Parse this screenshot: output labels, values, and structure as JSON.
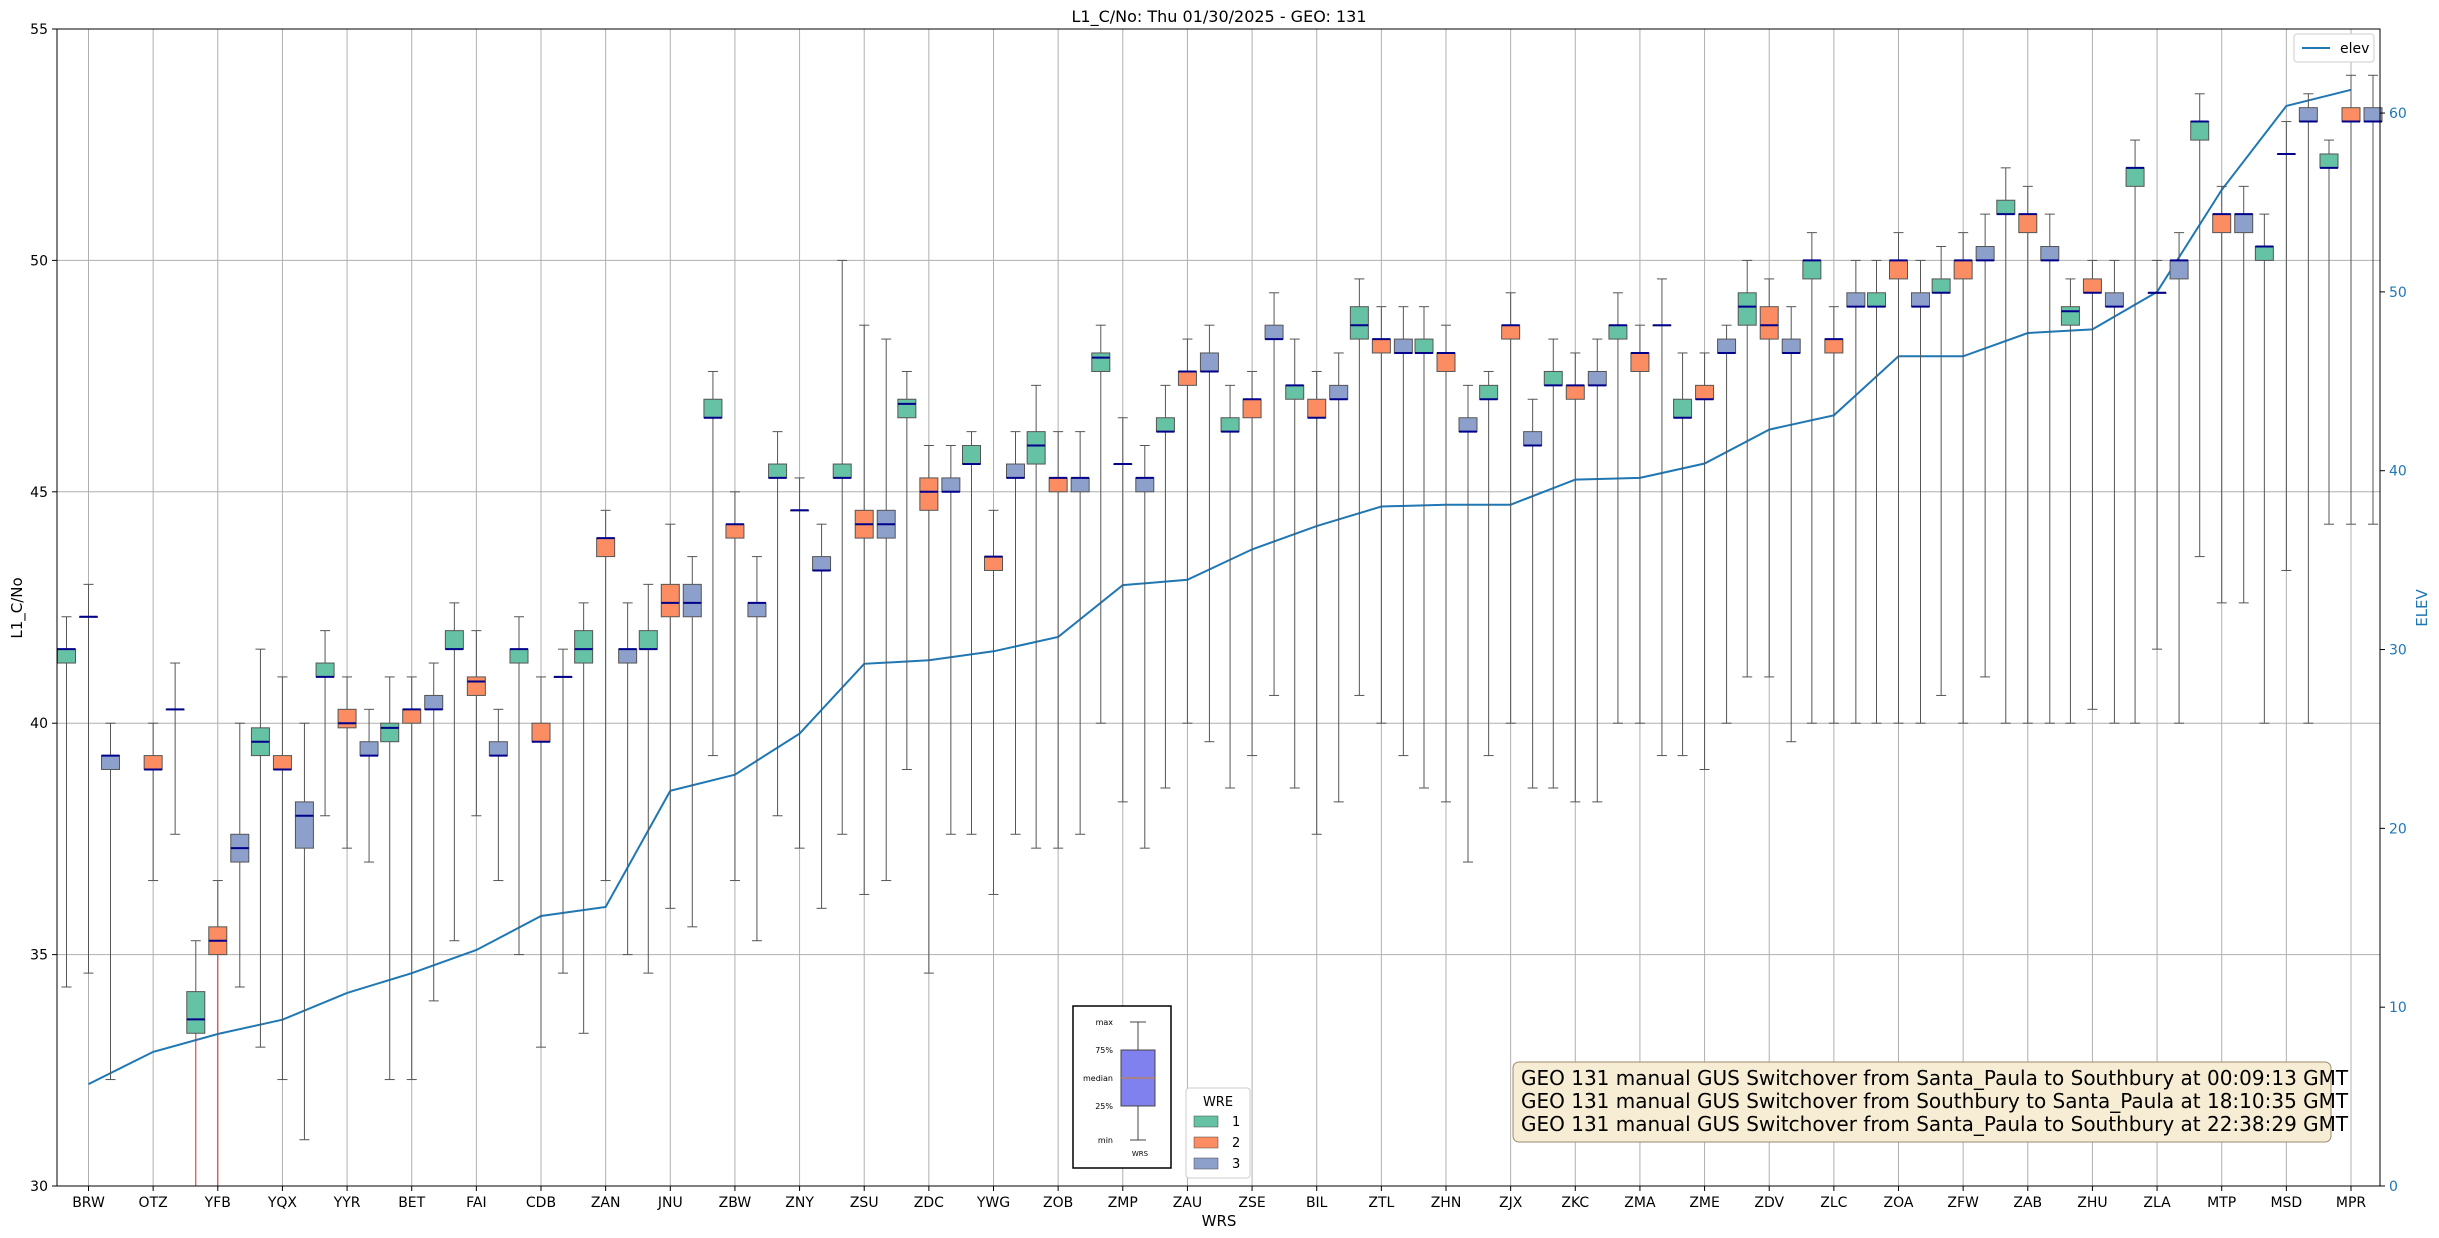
{
  "chart_data": {
    "type": "box",
    "title": "L1_C/No: Thu 01/30/2025 - GEO: 131",
    "xlabel": "WRS",
    "ylabel": "L1_C/No",
    "y2label": "ELEV",
    "ylim": [
      30,
      55
    ],
    "y2lim": [
      0,
      64.7
    ],
    "yticks": [
      30,
      35,
      40,
      45,
      50,
      55
    ],
    "y2ticks": [
      0,
      10,
      20,
      30,
      40,
      50,
      60
    ],
    "grid": true,
    "categories": [
      "BRW",
      "OTZ",
      "YFB",
      "YQX",
      "YYR",
      "BET",
      "FAI",
      "CDB",
      "ZAN",
      "JNU",
      "ZBW",
      "ZNY",
      "ZSU",
      "ZDC",
      "YWG",
      "ZOB",
      "ZMP",
      "ZAU",
      "ZSE",
      "BIL",
      "ZTL",
      "ZHN",
      "ZJX",
      "ZKC",
      "ZMA",
      "ZME",
      "ZDV",
      "ZLC",
      "ZOA",
      "ZFW",
      "ZAB",
      "ZHU",
      "ZLA",
      "MTP",
      "MSD",
      "MPR"
    ],
    "series": [
      {
        "name": "1",
        "color": "#66c2a5",
        "boxes": [
          {
            "q1": 41.3,
            "med": 41.6,
            "q3": 41.6,
            "min": 34.3,
            "max": 42.3
          },
          null,
          {
            "q1": 33.3,
            "med": 33.6,
            "q3": 34.2,
            "min": 30,
            "max": 35.3
          },
          {
            "q1": 39.3,
            "med": 39.6,
            "q3": 39.9,
            "min": 33.0,
            "max": 41.6
          },
          {
            "q1": 41.0,
            "med": 41.0,
            "q3": 41.3,
            "min": 38.0,
            "max": 42.0
          },
          {
            "q1": 39.6,
            "med": 39.9,
            "q3": 40.0,
            "min": 32.3,
            "max": 41.0
          },
          {
            "q1": 41.6,
            "med": 41.6,
            "q3": 42.0,
            "min": 35.3,
            "max": 42.6
          },
          {
            "q1": 41.3,
            "med": 41.6,
            "q3": 41.6,
            "min": 35.0,
            "max": 42.3
          },
          {
            "q1": 41.3,
            "med": 41.6,
            "q3": 42.0,
            "min": 33.3,
            "max": 42.6
          },
          {
            "q1": 41.6,
            "med": 41.6,
            "q3": 42.0,
            "min": 34.6,
            "max": 43.0
          },
          {
            "q1": 46.6,
            "med": 46.6,
            "q3": 47.0,
            "min": 39.3,
            "max": 47.6
          },
          {
            "q1": 45.3,
            "med": 45.3,
            "q3": 45.6,
            "min": 38.0,
            "max": 46.3
          },
          {
            "q1": 45.3,
            "med": 45.3,
            "q3": 45.6,
            "min": 37.6,
            "max": 50.0
          },
          {
            "q1": 46.6,
            "med": 46.9,
            "q3": 47.0,
            "min": 39.0,
            "max": 47.6
          },
          {
            "q1": 45.6,
            "med": 45.6,
            "q3": 46.0,
            "min": 37.6,
            "max": 46.3
          },
          {
            "q1": 45.6,
            "med": 46.0,
            "q3": 46.3,
            "min": 37.3,
            "max": 47.3
          },
          {
            "q1": 47.6,
            "med": 47.9,
            "q3": 48.0,
            "min": 40.0,
            "max": 48.6
          },
          {
            "q1": 46.3,
            "med": 46.3,
            "q3": 46.6,
            "min": 38.6,
            "max": 47.3
          },
          {
            "q1": 46.3,
            "med": 46.3,
            "q3": 46.6,
            "min": 38.6,
            "max": 47.3
          },
          {
            "q1": 47.0,
            "med": 47.3,
            "q3": 47.3,
            "min": 38.6,
            "max": 48.3
          },
          {
            "q1": 48.3,
            "med": 48.6,
            "q3": 49.0,
            "min": 40.6,
            "max": 49.6
          },
          {
            "q1": 48.0,
            "med": 48.0,
            "q3": 48.3,
            "min": 38.6,
            "max": 49.0
          },
          {
            "q1": 47.0,
            "med": 47.0,
            "q3": 47.3,
            "min": 39.3,
            "max": 47.6
          },
          {
            "q1": 47.3,
            "med": 47.3,
            "q3": 47.6,
            "min": 38.6,
            "max": 48.3
          },
          {
            "q1": 48.3,
            "med": 48.6,
            "q3": 48.6,
            "min": 40.0,
            "max": 49.3
          },
          {
            "q1": 46.6,
            "med": 46.6,
            "q3": 47.0,
            "min": 39.3,
            "max": 48.0
          },
          {
            "q1": 48.6,
            "med": 49.0,
            "q3": 49.3,
            "min": 41.0,
            "max": 50.0
          },
          {
            "q1": 49.6,
            "med": 50.0,
            "q3": 50.0,
            "min": 40.0,
            "max": 50.6
          },
          {
            "q1": 49.0,
            "med": 49.0,
            "q3": 49.3,
            "min": 40.0,
            "max": 50.0
          },
          {
            "q1": 49.3,
            "med": 49.3,
            "q3": 49.6,
            "min": 40.6,
            "max": 50.3
          },
          {
            "q1": 51.0,
            "med": 51.0,
            "q3": 51.3,
            "min": 40.0,
            "max": 52.0
          },
          {
            "q1": 48.6,
            "med": 48.9,
            "q3": 49.0,
            "min": 40.0,
            "max": 49.6
          },
          {
            "q1": 51.6,
            "med": 52.0,
            "q3": 52.0,
            "min": 40.0,
            "max": 52.6
          },
          {
            "q1": 52.6,
            "med": 53.0,
            "q3": 53.0,
            "min": 43.6,
            "max": 53.6
          },
          {
            "q1": 50.0,
            "med": 50.3,
            "q3": 50.3,
            "min": 40.0,
            "max": 51.0
          },
          {
            "q1": 52.0,
            "med": 52.0,
            "q3": 52.3,
            "min": 44.3,
            "max": 52.6
          }
        ]
      },
      {
        "name": "2",
        "color": "#fc8d62",
        "boxes": [
          {
            "q1": 42.3,
            "med": 42.3,
            "q3": 42.3,
            "min": 34.6,
            "max": 43.0
          },
          {
            "q1": 39.0,
            "med": 39.0,
            "q3": 39.3,
            "min": 36.6,
            "max": 40.0
          },
          {
            "q1": 35.0,
            "med": 35.3,
            "q3": 35.6,
            "min": 30,
            "max": 36.6
          },
          {
            "q1": 39.0,
            "med": 39.0,
            "q3": 39.3,
            "min": 32.3,
            "max": 41.0
          },
          {
            "q1": 39.9,
            "med": 40.0,
            "q3": 40.3,
            "min": 37.3,
            "max": 41.0
          },
          {
            "q1": 40.0,
            "med": 40.3,
            "q3": 40.3,
            "min": 32.3,
            "max": 41.0
          },
          {
            "q1": 40.6,
            "med": 40.9,
            "q3": 41.0,
            "min": 38.0,
            "max": 42.0
          },
          {
            "q1": 39.6,
            "med": 39.6,
            "q3": 40.0,
            "min": 33.0,
            "max": 41.0
          },
          {
            "q1": 43.6,
            "med": 44.0,
            "q3": 44.0,
            "min": 36.6,
            "max": 44.6
          },
          {
            "q1": 42.3,
            "med": 42.6,
            "q3": 43.0,
            "min": 36.0,
            "max": 44.3
          },
          {
            "q1": 44.0,
            "med": 44.3,
            "q3": 44.3,
            "min": 36.6,
            "max": 45.0
          },
          {
            "q1": 44.6,
            "med": 44.6,
            "q3": 44.6,
            "min": 37.3,
            "max": 45.3
          },
          {
            "q1": 44.0,
            "med": 44.3,
            "q3": 44.6,
            "min": 36.3,
            "max": 48.6
          },
          {
            "q1": 44.6,
            "med": 45.0,
            "q3": 45.3,
            "min": 34.6,
            "max": 46.0
          },
          {
            "q1": 43.3,
            "med": 43.6,
            "q3": 43.6,
            "min": 36.3,
            "max": 44.6
          },
          {
            "q1": 45.0,
            "med": 45.3,
            "q3": 45.3,
            "min": 37.3,
            "max": 46.3
          },
          {
            "q1": 45.6,
            "med": 45.6,
            "q3": 45.6,
            "min": 38.3,
            "max": 46.6
          },
          {
            "q1": 47.3,
            "med": 47.6,
            "q3": 47.6,
            "min": 40.0,
            "max": 48.3
          },
          {
            "q1": 46.6,
            "med": 47.0,
            "q3": 47.0,
            "min": 39.3,
            "max": 47.6
          },
          {
            "q1": 46.6,
            "med": 46.6,
            "q3": 47.0,
            "min": 37.6,
            "max": 47.6
          },
          {
            "q1": 48.0,
            "med": 48.3,
            "q3": 48.3,
            "min": 40.0,
            "max": 49.0
          },
          {
            "q1": 47.6,
            "med": 48.0,
            "q3": 48.0,
            "min": 38.3,
            "max": 48.6
          },
          {
            "q1": 48.3,
            "med": 48.6,
            "q3": 48.6,
            "min": 40.0,
            "max": 49.3
          },
          {
            "q1": 47.0,
            "med": 47.3,
            "q3": 47.3,
            "min": 38.3,
            "max": 48.0
          },
          {
            "q1": 47.6,
            "med": 48.0,
            "q3": 48.0,
            "min": 40.0,
            "max": 48.6
          },
          {
            "q1": 47.0,
            "med": 47.0,
            "q3": 47.3,
            "min": 39.0,
            "max": 48.0
          },
          {
            "q1": 48.3,
            "med": 48.6,
            "q3": 49.0,
            "min": 41.0,
            "max": 49.6
          },
          {
            "q1": 48.0,
            "med": 48.3,
            "q3": 48.3,
            "min": 40.0,
            "max": 49.0
          },
          {
            "q1": 49.6,
            "med": 50.0,
            "q3": 50.0,
            "min": 40.0,
            "max": 50.6
          },
          {
            "q1": 49.6,
            "med": 50.0,
            "q3": 50.0,
            "min": 40.0,
            "max": 50.6
          },
          {
            "q1": 50.6,
            "med": 51.0,
            "q3": 51.0,
            "min": 40.0,
            "max": 51.6
          },
          {
            "q1": 49.3,
            "med": 49.3,
            "q3": 49.6,
            "min": 40.3,
            "max": 50.0
          },
          {
            "q1": 49.3,
            "med": 49.3,
            "q3": 49.3,
            "min": 41.6,
            "max": 50.0
          },
          {
            "q1": 50.6,
            "med": 51.0,
            "q3": 51.0,
            "min": 42.6,
            "max": 51.6
          },
          {
            "q1": 52.3,
            "med": 52.3,
            "q3": 52.3,
            "min": 43.3,
            "max": 53.0
          },
          {
            "q1": 53.0,
            "med": 53.0,
            "q3": 53.3,
            "min": 44.3,
            "max": 54.0
          }
        ]
      },
      {
        "name": "3",
        "color": "#8da0cb",
        "boxes": [
          {
            "q1": 39.0,
            "med": 39.3,
            "q3": 39.3,
            "min": 32.3,
            "max": 40.0
          },
          {
            "q1": 40.3,
            "med": 40.3,
            "q3": 40.3,
            "min": 37.6,
            "max": 41.3
          },
          {
            "q1": 37.0,
            "med": 37.3,
            "q3": 37.6,
            "min": 34.3,
            "max": 40.0
          },
          {
            "q1": 37.3,
            "med": 38.0,
            "q3": 38.3,
            "min": 31.0,
            "max": 40.0
          },
          {
            "q1": 39.3,
            "med": 39.3,
            "q3": 39.6,
            "min": 37.0,
            "max": 40.3
          },
          {
            "q1": 40.3,
            "med": 40.3,
            "q3": 40.6,
            "min": 34.0,
            "max": 41.3
          },
          {
            "q1": 39.3,
            "med": 39.3,
            "q3": 39.6,
            "min": 36.6,
            "max": 40.3
          },
          {
            "q1": 41.0,
            "med": 41.0,
            "q3": 41.0,
            "min": 34.6,
            "max": 41.6
          },
          {
            "q1": 41.3,
            "med": 41.6,
            "q3": 41.6,
            "min": 35.0,
            "max": 42.6
          },
          {
            "q1": 42.3,
            "med": 42.6,
            "q3": 43.0,
            "min": 35.6,
            "max": 43.6
          },
          {
            "q1": 42.3,
            "med": 42.6,
            "q3": 42.6,
            "min": 35.3,
            "max": 43.6
          },
          {
            "q1": 43.3,
            "med": 43.3,
            "q3": 43.6,
            "min": 36.0,
            "max": 44.3
          },
          {
            "q1": 44.0,
            "med": 44.3,
            "q3": 44.6,
            "min": 36.6,
            "max": 48.3
          },
          {
            "q1": 45.0,
            "med": 45.0,
            "q3": 45.3,
            "min": 37.6,
            "max": 46.0
          },
          {
            "q1": 45.3,
            "med": 45.3,
            "q3": 45.6,
            "min": 37.6,
            "max": 46.3
          },
          {
            "q1": 45.0,
            "med": 45.3,
            "q3": 45.3,
            "min": 37.6,
            "max": 46.3
          },
          {
            "q1": 45.0,
            "med": 45.3,
            "q3": 45.3,
            "min": 37.3,
            "max": 46.0
          },
          {
            "q1": 47.6,
            "med": 47.6,
            "q3": 48.0,
            "min": 39.6,
            "max": 48.6
          },
          {
            "q1": 48.3,
            "med": 48.3,
            "q3": 48.6,
            "min": 40.6,
            "max": 49.3
          },
          {
            "q1": 47.0,
            "med": 47.0,
            "q3": 47.3,
            "min": 38.3,
            "max": 48.0
          },
          {
            "q1": 48.0,
            "med": 48.0,
            "q3": 48.3,
            "min": 39.3,
            "max": 49.0
          },
          {
            "q1": 46.3,
            "med": 46.3,
            "q3": 46.6,
            "min": 37.0,
            "max": 47.3
          },
          {
            "q1": 46.0,
            "med": 46.0,
            "q3": 46.3,
            "min": 38.6,
            "max": 47.0
          },
          {
            "q1": 47.3,
            "med": 47.3,
            "q3": 47.6,
            "min": 38.3,
            "max": 48.3
          },
          {
            "q1": 48.6,
            "med": 48.6,
            "q3": 48.6,
            "min": 39.3,
            "max": 49.6
          },
          {
            "q1": 48.0,
            "med": 48.0,
            "q3": 48.3,
            "min": 40.0,
            "max": 48.6
          },
          {
            "q1": 48.0,
            "med": 48.0,
            "q3": 48.3,
            "min": 39.6,
            "max": 49.0
          },
          {
            "q1": 49.0,
            "med": 49.0,
            "q3": 49.3,
            "min": 40.0,
            "max": 50.0
          },
          {
            "q1": 49.0,
            "med": 49.0,
            "q3": 49.3,
            "min": 40.0,
            "max": 50.0
          },
          {
            "q1": 50.0,
            "med": 50.0,
            "q3": 50.3,
            "min": 41.0,
            "max": 51.0
          },
          {
            "q1": 50.0,
            "med": 50.0,
            "q3": 50.3,
            "min": 40.0,
            "max": 51.0
          },
          {
            "q1": 49.0,
            "med": 49.0,
            "q3": 49.3,
            "min": 40.0,
            "max": 50.0
          },
          {
            "q1": 49.6,
            "med": 50.0,
            "q3": 50.0,
            "min": 40.0,
            "max": 50.6
          },
          {
            "q1": 50.6,
            "med": 51.0,
            "q3": 51.0,
            "min": 42.6,
            "max": 51.6
          },
          {
            "q1": 53.0,
            "med": 53.0,
            "q3": 53.3,
            "min": 40.0,
            "max": 53.6
          },
          {
            "q1": 53.0,
            "med": 53.0,
            "q3": 53.3,
            "min": 44.3,
            "max": 54.0
          }
        ]
      }
    ],
    "elev": {
      "name": "elev",
      "color": "#1f77b4",
      "values": [
        5.7,
        7.5,
        8.5,
        9.3,
        10.8,
        11.9,
        13.2,
        15.1,
        15.6,
        22.1,
        23.0,
        25.3,
        29.2,
        29.4,
        29.9,
        30.7,
        33.6,
        33.9,
        35.6,
        36.9,
        38.0,
        38.1,
        38.1,
        39.5,
        39.6,
        40.4,
        42.3,
        43.1,
        46.4,
        46.4,
        47.7,
        47.9,
        50.0,
        55.7,
        60.4,
        61.3
      ]
    },
    "legend": {
      "title": "WRE",
      "entries": [
        "1",
        "2",
        "3"
      ],
      "elev_label": "elev",
      "placement": "lower-center",
      "elev_placement": "top-right"
    },
    "box_key_labels": [
      "max",
      "75%",
      "median",
      "25%",
      "min",
      "WRS"
    ],
    "annotations": [
      "GEO 131 manual GUS Switchover from Santa_Paula to Southbury at 00:09:13 GMT",
      "GEO 131 manual GUS Switchover from Southbury to Santa_Paula at 18:10:35 GMT",
      "GEO 131 manual GUS Switchover from Santa_Paula to Southbury at 22:38:29 GMT"
    ]
  }
}
